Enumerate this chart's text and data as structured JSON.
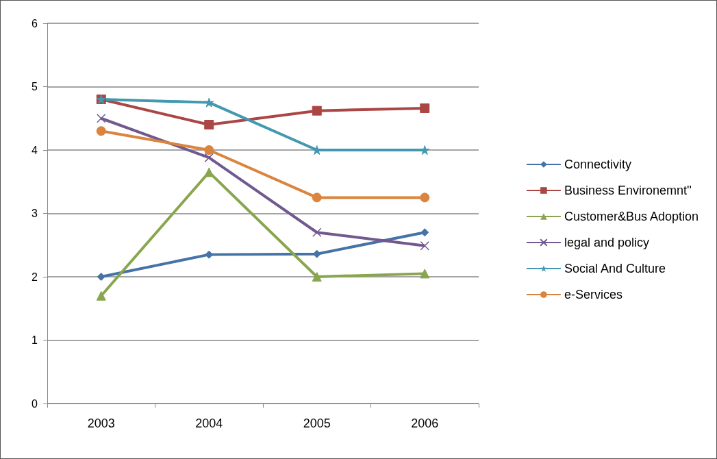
{
  "chart_data": {
    "type": "line",
    "categories": [
      "2003",
      "2004",
      "2005",
      "2006"
    ],
    "series": [
      {
        "name": "Connectivity",
        "color": "#4572a7",
        "marker": "diamond",
        "values": [
          2.0,
          2.35,
          2.36,
          2.7
        ]
      },
      {
        "name": "Business Environemnt''",
        "color": "#aa4643",
        "marker": "square",
        "values": [
          4.8,
          4.4,
          4.62,
          4.66
        ]
      },
      {
        "name": "Customer&Bus Adoption",
        "color": "#89a54e",
        "marker": "triangle",
        "values": [
          1.7,
          3.65,
          2.0,
          2.05
        ]
      },
      {
        "name": "legal and policy",
        "color": "#71588f",
        "marker": "cross",
        "values": [
          4.5,
          3.88,
          2.7,
          2.49
        ]
      },
      {
        "name": "Social And Culture",
        "color": "#4198af",
        "marker": "star",
        "values": [
          4.8,
          4.75,
          4.0,
          4.0
        ]
      },
      {
        "name": "e-Services",
        "color": "#db843d",
        "marker": "circle",
        "values": [
          4.3,
          4.0,
          3.25,
          3.25
        ]
      }
    ],
    "ylim": [
      0,
      6
    ],
    "yticks": [
      0,
      1,
      2,
      3,
      4,
      5,
      6
    ],
    "grid": "y",
    "legend": "right"
  }
}
